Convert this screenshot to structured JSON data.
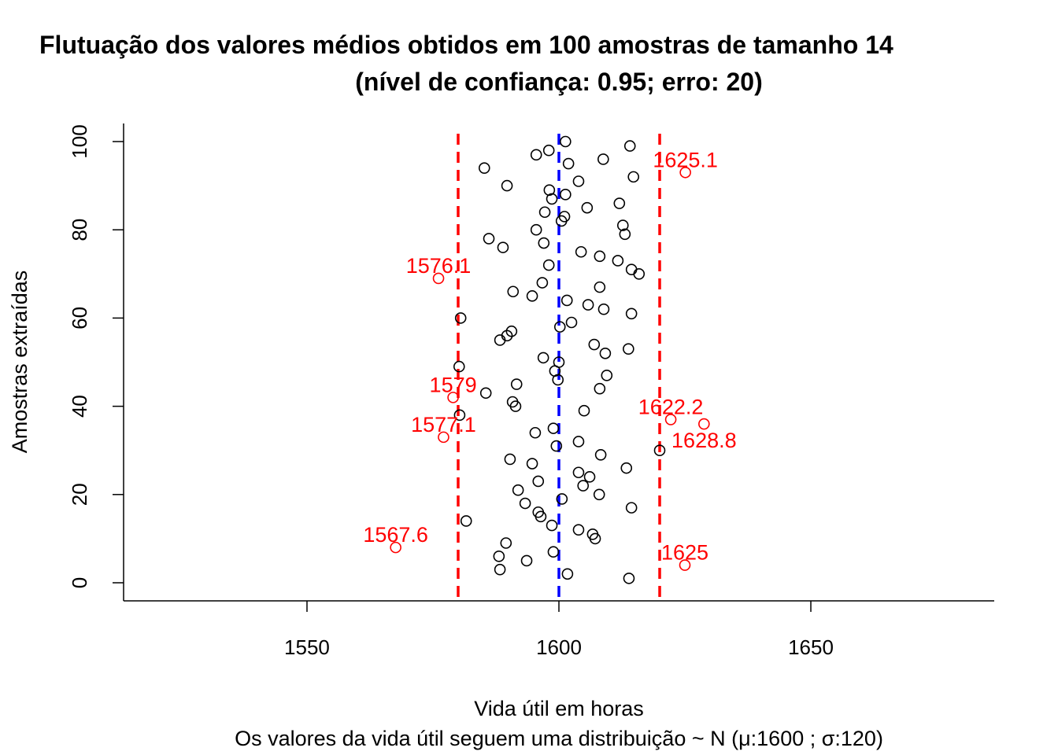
{
  "chart_data": {
    "type": "scatter",
    "title": [
      "Flutuação dos valores médios obtidos em 100 amostras de tamanho 14",
      "(nível de confiança: 0.95; erro: 20)"
    ],
    "xlabel": "Vida útil em horas",
    "subtitle": "Os valores da vida útil seguem uma distribuição ~ N  (μ:1600 ; σ:120)",
    "ylabel": "Amostras extraídas",
    "xlim": [
      1513.6,
      1686.4
    ],
    "ylim": [
      -4.1,
      104.1
    ],
    "xticks": [
      "1550",
      "1600",
      "1650"
    ],
    "yticks": [
      "0",
      "20",
      "40",
      "60",
      "80",
      "100"
    ],
    "grid": false,
    "reference_lines": [
      {
        "x": 1580,
        "color": "#ff0000",
        "style": "dashed"
      },
      {
        "x": 1600,
        "color": "#0000ff",
        "style": "dashed"
      },
      {
        "x": 1620,
        "color": "#ff0000",
        "style": "dashed"
      }
    ],
    "point_color": "#000000",
    "outlier_color": "#ff0000",
    "points": [
      [
        1613.9,
        1
      ],
      [
        1601.7,
        2
      ],
      [
        1588.3,
        3
      ],
      [
        1625.0,
        4
      ],
      [
        1593.6,
        5
      ],
      [
        1588.1,
        6
      ],
      [
        1598.9,
        7
      ],
      [
        1567.6,
        8
      ],
      [
        1589.5,
        9
      ],
      [
        1607.2,
        10
      ],
      [
        1606.7,
        11
      ],
      [
        1603.9,
        12
      ],
      [
        1598.6,
        13
      ],
      [
        1581.6,
        14
      ],
      [
        1596.4,
        15
      ],
      [
        1595.9,
        16
      ],
      [
        1614.4,
        17
      ],
      [
        1593.3,
        18
      ],
      [
        1600.6,
        19
      ],
      [
        1608.0,
        20
      ],
      [
        1591.9,
        21
      ],
      [
        1604.8,
        22
      ],
      [
        1595.9,
        23
      ],
      [
        1606.1,
        24
      ],
      [
        1603.9,
        25
      ],
      [
        1613.4,
        26
      ],
      [
        1594.7,
        27
      ],
      [
        1590.3,
        28
      ],
      [
        1608.3,
        29
      ],
      [
        1620.0,
        30
      ],
      [
        1599.5,
        31
      ],
      [
        1603.9,
        32
      ],
      [
        1577.1,
        33
      ],
      [
        1595.3,
        34
      ],
      [
        1598.9,
        35
      ],
      [
        1628.8,
        36
      ],
      [
        1622.2,
        37
      ],
      [
        1580.3,
        38
      ],
      [
        1605.0,
        39
      ],
      [
        1591.4,
        40
      ],
      [
        1590.8,
        41
      ],
      [
        1579.0,
        42
      ],
      [
        1585.5,
        43
      ],
      [
        1608.1,
        44
      ],
      [
        1591.6,
        45
      ],
      [
        1599.8,
        46
      ],
      [
        1609.5,
        47
      ],
      [
        1599.2,
        48
      ],
      [
        1580.2,
        49
      ],
      [
        1600.0,
        50
      ],
      [
        1596.9,
        51
      ],
      [
        1609.2,
        52
      ],
      [
        1613.8,
        53
      ],
      [
        1607.0,
        54
      ],
      [
        1588.3,
        55
      ],
      [
        1589.7,
        56
      ],
      [
        1590.6,
        57
      ],
      [
        1600.2,
        58
      ],
      [
        1602.5,
        59
      ],
      [
        1580.5,
        60
      ],
      [
        1614.4,
        61
      ],
      [
        1608.9,
        62
      ],
      [
        1605.8,
        63
      ],
      [
        1601.6,
        64
      ],
      [
        1594.7,
        65
      ],
      [
        1590.9,
        66
      ],
      [
        1608.1,
        67
      ],
      [
        1596.7,
        68
      ],
      [
        1576.1,
        69
      ],
      [
        1615.9,
        70
      ],
      [
        1614.4,
        71
      ],
      [
        1598.0,
        72
      ],
      [
        1611.7,
        73
      ],
      [
        1608.1,
        74
      ],
      [
        1604.4,
        75
      ],
      [
        1588.9,
        76
      ],
      [
        1597.0,
        77
      ],
      [
        1586.1,
        78
      ],
      [
        1613.1,
        79
      ],
      [
        1595.5,
        80
      ],
      [
        1612.7,
        81
      ],
      [
        1600.5,
        82
      ],
      [
        1601.1,
        83
      ],
      [
        1597.2,
        84
      ],
      [
        1605.6,
        85
      ],
      [
        1612.0,
        86
      ],
      [
        1598.6,
        87
      ],
      [
        1601.3,
        88
      ],
      [
        1598.1,
        89
      ],
      [
        1589.7,
        90
      ],
      [
        1603.9,
        91
      ],
      [
        1614.8,
        92
      ],
      [
        1625.1,
        93
      ],
      [
        1585.2,
        94
      ],
      [
        1601.9,
        95
      ],
      [
        1608.8,
        96
      ],
      [
        1595.5,
        97
      ],
      [
        1598.0,
        98
      ],
      [
        1614.1,
        99
      ],
      [
        1601.3,
        100
      ]
    ],
    "annotations": [
      {
        "label": "1625.1",
        "x": 1625.1,
        "y": 93
      },
      {
        "label": "1576.1",
        "x": 1576.1,
        "y": 69
      },
      {
        "label": "1579",
        "x": 1579.0,
        "y": 42
      },
      {
        "label": "1622.2",
        "x": 1622.2,
        "y": 37
      },
      {
        "label": "1628.8",
        "x": 1628.8,
        "y": 36
      },
      {
        "label": "1577.1",
        "x": 1577.1,
        "y": 33
      },
      {
        "label": "1567.6",
        "x": 1567.6,
        "y": 8
      },
      {
        "label": "1625",
        "x": 1625.0,
        "y": 4
      }
    ]
  }
}
